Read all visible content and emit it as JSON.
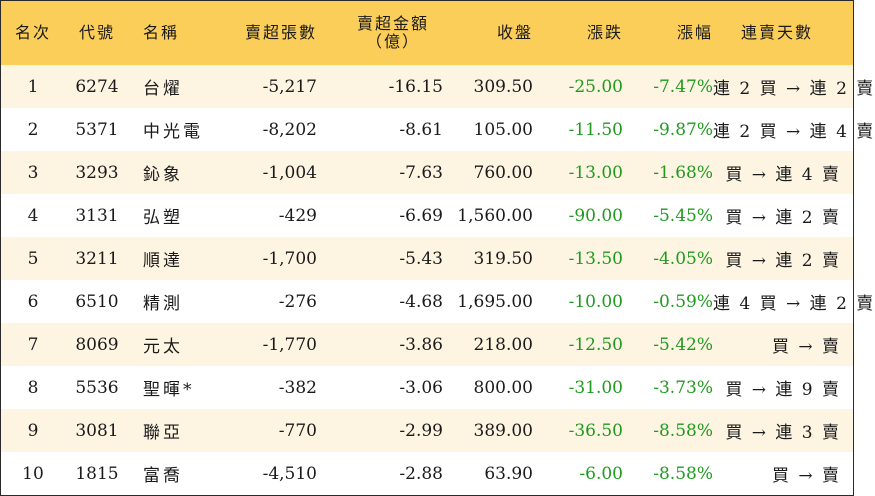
{
  "headers": {
    "rank": "名次",
    "code": "代號",
    "name": "名稱",
    "net_sell_lots": "賣超張數",
    "net_sell_amount_line1": "賣超金額",
    "net_sell_amount_line2": "（億）",
    "close": "收盤",
    "change": "漲跌",
    "change_pct": "漲幅",
    "streak": "連賣天數"
  },
  "rows": [
    {
      "rank": "1",
      "code": "6274",
      "name": "台燿",
      "lots": "-5,217",
      "amount": "-16.15",
      "close": "309.50",
      "change": "-25.00",
      "pct": "-7.47%",
      "streak": "連 2 買 → 連 2 賣"
    },
    {
      "rank": "2",
      "code": "5371",
      "name": "中光電",
      "lots": "-8,202",
      "amount": "-8.61",
      "close": "105.00",
      "change": "-11.50",
      "pct": "-9.87%",
      "streak": "連 2 買 → 連 4 賣"
    },
    {
      "rank": "3",
      "code": "3293",
      "name": "鈊象",
      "lots": "-1,004",
      "amount": "-7.63",
      "close": "760.00",
      "change": "-13.00",
      "pct": "-1.68%",
      "streak": "買 → 連 4 賣"
    },
    {
      "rank": "4",
      "code": "3131",
      "name": "弘塑",
      "lots": "-429",
      "amount": "-6.69",
      "close": "1,560.00",
      "change": "-90.00",
      "pct": "-5.45%",
      "streak": "買 → 連 2 賣"
    },
    {
      "rank": "5",
      "code": "3211",
      "name": "順達",
      "lots": "-1,700",
      "amount": "-5.43",
      "close": "319.50",
      "change": "-13.50",
      "pct": "-4.05%",
      "streak": "買 → 連 2 賣"
    },
    {
      "rank": "6",
      "code": "6510",
      "name": "精測",
      "lots": "-276",
      "amount": "-4.68",
      "close": "1,695.00",
      "change": "-10.00",
      "pct": "-0.59%",
      "streak": "連 4 買 → 連 2 賣"
    },
    {
      "rank": "7",
      "code": "8069",
      "name": "元太",
      "lots": "-1,770",
      "amount": "-3.86",
      "close": "218.00",
      "change": "-12.50",
      "pct": "-5.42%",
      "streak": "買 → 賣"
    },
    {
      "rank": "8",
      "code": "5536",
      "name": "聖暉*",
      "lots": "-382",
      "amount": "-3.06",
      "close": "800.00",
      "change": "-31.00",
      "pct": "-3.73%",
      "streak": "買 → 連 9 賣"
    },
    {
      "rank": "9",
      "code": "3081",
      "name": "聯亞",
      "lots": "-770",
      "amount": "-2.99",
      "close": "389.00",
      "change": "-36.50",
      "pct": "-8.58%",
      "streak": "買 → 連 3 賣"
    },
    {
      "rank": "10",
      "code": "1815",
      "name": "富喬",
      "lots": "-4,510",
      "amount": "-2.88",
      "close": "63.90",
      "change": "-6.00",
      "pct": "-8.58%",
      "streak": "買 → 賣"
    }
  ],
  "colors": {
    "header_bg": "#fbce5a",
    "odd_row_bg": "#fdf4e2",
    "even_row_bg": "#ffffff",
    "down_green": "#1f9a1f"
  }
}
